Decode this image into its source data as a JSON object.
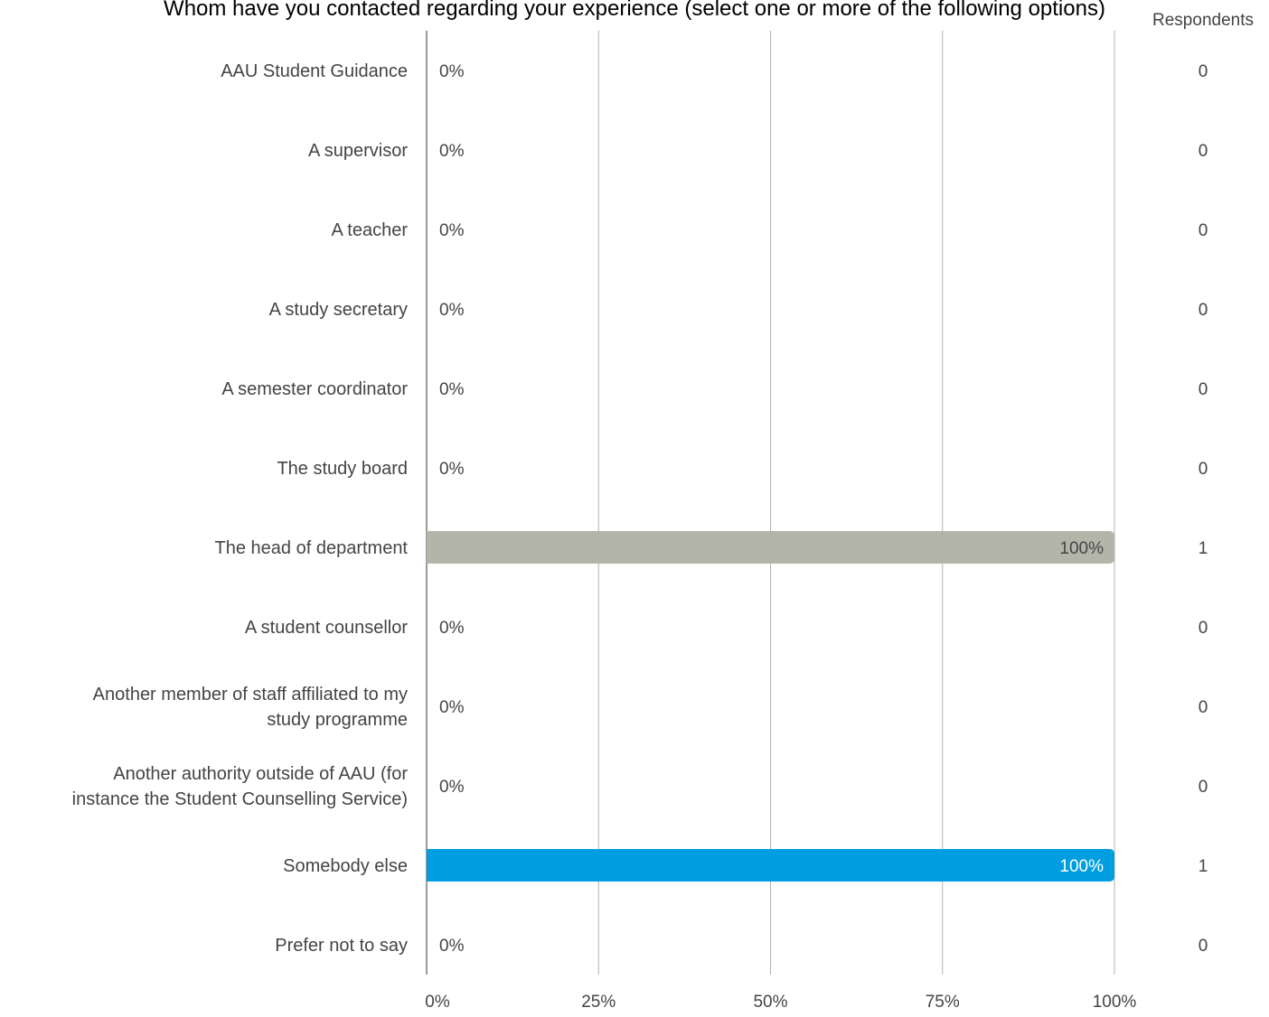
{
  "chart_data": {
    "type": "bar",
    "orientation": "horizontal",
    "title": "Whom have you contacted regarding your experience (select one or more of the following options)",
    "respondents_header": "Respondents",
    "categories": [
      "AAU Student Guidance",
      "A supervisor",
      "A teacher",
      "A study secretary",
      "A semester coordinator",
      "The study board",
      "The head of department",
      "A student counsellor",
      "Another member of staff affiliated to my study programme",
      "Another authority outside of AAU (for instance the Student Counselling Service)",
      "Somebody else",
      "Prefer not to say"
    ],
    "category_label_lines": [
      [
        "AAU Student Guidance"
      ],
      [
        "A supervisor"
      ],
      [
        "A teacher"
      ],
      [
        "A study secretary"
      ],
      [
        "A semester coordinator"
      ],
      [
        "The study board"
      ],
      [
        "The head of department"
      ],
      [
        "A student counsellor"
      ],
      [
        "Another member of staff affiliated to my",
        "study programme"
      ],
      [
        "Another authority outside of AAU (for",
        "instance the Student Counselling Service)"
      ],
      [
        "Somebody else"
      ],
      [
        "Prefer not to say"
      ]
    ],
    "values": [
      0,
      0,
      0,
      0,
      0,
      0,
      100,
      0,
      0,
      0,
      100,
      0
    ],
    "value_labels": [
      "0%",
      "0%",
      "0%",
      "0%",
      "0%",
      "0%",
      "100%",
      "0%",
      "0%",
      "0%",
      "100%",
      "0%"
    ],
    "respondents": [
      "0",
      "0",
      "0",
      "0",
      "0",
      "0",
      "1",
      "0",
      "0",
      "0",
      "1",
      "0"
    ],
    "bar_colors": [
      "#b3b5a8",
      "#b3b5a8",
      "#b3b5a8",
      "#b3b5a8",
      "#b3b5a8",
      "#b3b5a8",
      "#b3b5a8",
      "#b3b5a8",
      "#b3b5a8",
      "#b3b5a8",
      "#009ee0",
      "#b3b5a8"
    ],
    "value_label_colors": [
      "#444444",
      "#444444",
      "#444444",
      "#444444",
      "#444444",
      "#444444",
      "#444444",
      "#444444",
      "#444444",
      "#444444",
      "#ffffff",
      "#444444"
    ],
    "x_ticks": [
      "0%",
      "25%",
      "50%",
      "75%",
      "100%"
    ],
    "xlim": [
      0,
      100
    ],
    "grid": true
  }
}
